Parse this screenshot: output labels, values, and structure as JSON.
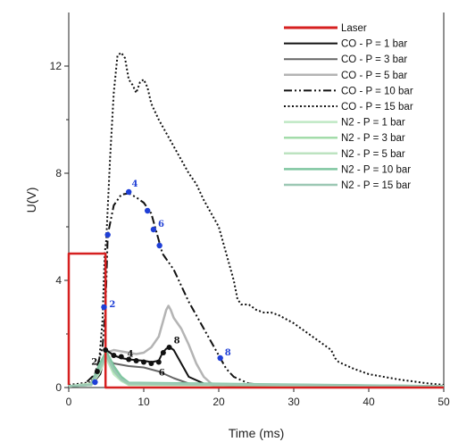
{
  "chart_data": {
    "type": "line",
    "xlabel": "Time (ms)",
    "ylabel": "U(V)",
    "xlim": [
      0,
      50
    ],
    "ylim": [
      0,
      14
    ],
    "x_ticks": [
      0,
      10,
      20,
      30,
      40,
      50
    ],
    "y_ticks": [
      0,
      4,
      8,
      12
    ],
    "grid": false,
    "legend_position": "top-right",
    "series": [
      {
        "name": "Laser",
        "color": "#d62020",
        "style": "solid",
        "width": 2.5,
        "points": [
          [
            0,
            0.1
          ],
          [
            0,
            5
          ],
          [
            4.9,
            5
          ],
          [
            4.9,
            0
          ],
          [
            50,
            0
          ]
        ]
      },
      {
        "name": "CO - P = 1 bar",
        "color": "#111111",
        "style": "solid",
        "width": 2,
        "points": [
          [
            0,
            0.05
          ],
          [
            3,
            0.1
          ],
          [
            4.2,
            0.5
          ],
          [
            5,
            1.4
          ],
          [
            6,
            1.2
          ],
          [
            7,
            1.1
          ],
          [
            8,
            1.05
          ],
          [
            10,
            1.0
          ],
          [
            11,
            0.95
          ],
          [
            12,
            1.0
          ],
          [
            12.5,
            1.3
          ],
          [
            13,
            1.45
          ],
          [
            13.5,
            1.5
          ],
          [
            14,
            1.4
          ],
          [
            15,
            0.9
          ],
          [
            16,
            0.4
          ],
          [
            18,
            0.15
          ],
          [
            22,
            0.05
          ],
          [
            50,
            0.05
          ]
        ]
      },
      {
        "name": "CO - P = 3 bar",
        "color": "#666666",
        "style": "solid",
        "width": 2,
        "points": [
          [
            0,
            0.05
          ],
          [
            3,
            0.1
          ],
          [
            4,
            0.5
          ],
          [
            5,
            1.1
          ],
          [
            6,
            0.9
          ],
          [
            8,
            0.8
          ],
          [
            10,
            0.75
          ],
          [
            12,
            0.6
          ],
          [
            14,
            0.35
          ],
          [
            16,
            0.15
          ],
          [
            20,
            0.05
          ],
          [
            50,
            0.05
          ]
        ]
      },
      {
        "name": "CO - P = 5 bar",
        "color": "#b4b4b4",
        "style": "solid",
        "width": 2.5,
        "points": [
          [
            0,
            0.05
          ],
          [
            3,
            0.1
          ],
          [
            4,
            0.6
          ],
          [
            5,
            1.3
          ],
          [
            6,
            1.4
          ],
          [
            7,
            1.35
          ],
          [
            8,
            1.3
          ],
          [
            9,
            1.25
          ],
          [
            10,
            1.3
          ],
          [
            11,
            1.5
          ],
          [
            12,
            1.9
          ],
          [
            12.5,
            2.4
          ],
          [
            13,
            2.9
          ],
          [
            13.3,
            3.05
          ],
          [
            13.6,
            2.9
          ],
          [
            14,
            2.6
          ],
          [
            15,
            2.2
          ],
          [
            16,
            1.6
          ],
          [
            17,
            0.9
          ],
          [
            18,
            0.4
          ],
          [
            19,
            0.15
          ],
          [
            22,
            0.05
          ],
          [
            50,
            0.05
          ]
        ]
      },
      {
        "name": "CO - P = 10 bar",
        "color": "#111111",
        "style": "dashdotdot",
        "width": 2,
        "points": [
          [
            0,
            0.05
          ],
          [
            2,
            0.1
          ],
          [
            3.5,
            0.5
          ],
          [
            4.5,
            1.5
          ],
          [
            4.9,
            3.0
          ],
          [
            5.2,
            5.7
          ],
          [
            6,
            6.8
          ],
          [
            7,
            7.2
          ],
          [
            8,
            7.25
          ],
          [
            9,
            7.1
          ],
          [
            10,
            6.9
          ],
          [
            11,
            6.5
          ],
          [
            12,
            5.5
          ],
          [
            12.5,
            5.0
          ],
          [
            13,
            4.8
          ],
          [
            14,
            4.4
          ],
          [
            16,
            3.2
          ],
          [
            18,
            2.2
          ],
          [
            20,
            1.2
          ],
          [
            21,
            0.7
          ],
          [
            22,
            0.4
          ],
          [
            24,
            0.15
          ],
          [
            28,
            0.05
          ],
          [
            50,
            0.05
          ]
        ]
      },
      {
        "name": "CO - P = 15 bar",
        "color": "#111111",
        "style": "dotted",
        "width": 2,
        "points": [
          [
            0,
            0.1
          ],
          [
            3,
            0.2
          ],
          [
            4,
            0.8
          ],
          [
            4.5,
            2.5
          ],
          [
            4.8,
            5.0
          ],
          [
            5,
            5.5
          ],
          [
            5.5,
            8.5
          ],
          [
            6,
            11.0
          ],
          [
            6.5,
            12.4
          ],
          [
            7,
            12.5
          ],
          [
            7.5,
            12.3
          ],
          [
            8,
            11.5
          ],
          [
            8.5,
            11.3
          ],
          [
            9,
            11.0
          ],
          [
            9.5,
            11.4
          ],
          [
            10,
            11.5
          ],
          [
            10.5,
            11.2
          ],
          [
            11,
            10.6
          ],
          [
            12,
            10.0
          ],
          [
            13,
            9.5
          ],
          [
            14,
            9.0
          ],
          [
            15,
            8.5
          ],
          [
            16,
            8.0
          ],
          [
            17,
            7.6
          ],
          [
            18,
            7.0
          ],
          [
            19,
            6.5
          ],
          [
            20,
            6.0
          ],
          [
            21,
            5.0
          ],
          [
            22,
            4.0
          ],
          [
            22.5,
            3.3
          ],
          [
            23,
            3.1
          ],
          [
            24,
            3.1
          ],
          [
            25,
            2.9
          ],
          [
            26,
            2.8
          ],
          [
            27,
            2.8
          ],
          [
            28,
            2.7
          ],
          [
            30,
            2.4
          ],
          [
            32,
            2.0
          ],
          [
            34,
            1.6
          ],
          [
            35,
            1.4
          ],
          [
            35.5,
            1.1
          ],
          [
            36,
            0.95
          ],
          [
            38,
            0.7
          ],
          [
            40,
            0.5
          ],
          [
            44,
            0.3
          ],
          [
            48,
            0.15
          ],
          [
            50,
            0.1
          ]
        ]
      },
      {
        "name": "N2 - P = 1 bar",
        "color": "#bfe8c4",
        "style": "solid",
        "width": 2.5,
        "points": [
          [
            0,
            0.05
          ],
          [
            3,
            0.1
          ],
          [
            4,
            0.5
          ],
          [
            5,
            1.1
          ],
          [
            6,
            0.5
          ],
          [
            7,
            0.25
          ],
          [
            8,
            0.1
          ],
          [
            50,
            0.05
          ]
        ]
      },
      {
        "name": "N2 - P = 3 bar",
        "color": "#a3dcaa",
        "style": "solid",
        "width": 2.5,
        "points": [
          [
            0,
            0.05
          ],
          [
            3,
            0.1
          ],
          [
            4,
            0.6
          ],
          [
            5,
            1.25
          ],
          [
            6,
            0.6
          ],
          [
            7,
            0.3
          ],
          [
            8,
            0.12
          ],
          [
            50,
            0.05
          ]
        ]
      },
      {
        "name": "N2 - P = 5 bar",
        "color": "#bde3c0",
        "style": "solid",
        "width": 2.5,
        "points": [
          [
            0,
            0.05
          ],
          [
            3,
            0.15
          ],
          [
            4,
            0.7
          ],
          [
            5,
            1.2
          ],
          [
            6,
            0.7
          ],
          [
            7,
            0.35
          ],
          [
            8,
            0.15
          ],
          [
            50,
            0.05
          ]
        ]
      },
      {
        "name": "N2 - P = 10 bar",
        "color": "#7fc6a0",
        "style": "solid",
        "width": 2.5,
        "points": [
          [
            0,
            0.05
          ],
          [
            3,
            0.1
          ],
          [
            4,
            0.8
          ],
          [
            5,
            1.35
          ],
          [
            6,
            0.8
          ],
          [
            7,
            0.4
          ],
          [
            8,
            0.18
          ],
          [
            50,
            0.05
          ]
        ]
      },
      {
        "name": "N2 - P = 15 bar",
        "color": "#9cc8b4",
        "style": "solid",
        "width": 2.5,
        "points": [
          [
            0,
            0.05
          ],
          [
            3,
            0.1
          ],
          [
            4,
            0.6
          ],
          [
            5,
            1.2
          ],
          [
            6,
            0.65
          ],
          [
            7,
            0.3
          ],
          [
            8,
            0.15
          ],
          [
            50,
            0.05
          ]
        ]
      }
    ],
    "markers_blue": [
      [
        3.5,
        0.2
      ],
      [
        4.7,
        3.0
      ],
      [
        5.2,
        5.7
      ],
      [
        8,
        7.3
      ],
      [
        10.5,
        6.6
      ],
      [
        11.3,
        5.9
      ],
      [
        12.1,
        5.3
      ],
      [
        20.2,
        1.1
      ]
    ],
    "markers_black": [
      [
        3.8,
        0.6
      ],
      [
        4.9,
        1.4
      ],
      [
        6,
        1.2
      ],
      [
        7,
        1.15
      ],
      [
        8,
        1.05
      ],
      [
        9,
        1.0
      ],
      [
        10,
        0.95
      ],
      [
        11,
        0.9
      ],
      [
        12,
        0.95
      ],
      [
        12.6,
        1.3
      ],
      [
        13.4,
        1.5
      ]
    ],
    "annotations_blue": [
      {
        "text": "2",
        "x": 5.4,
        "y": 3.0
      },
      {
        "text": "4",
        "x": 8.4,
        "y": 7.5
      },
      {
        "text": "6",
        "x": 11.9,
        "y": 6.0
      },
      {
        "text": "8",
        "x": 20.8,
        "y": 1.2
      }
    ],
    "annotations_black": [
      {
        "text": "2",
        "x": 3.0,
        "y": 0.85
      },
      {
        "text": "4",
        "x": 7.8,
        "y": 1.15
      },
      {
        "text": "6",
        "x": 12.0,
        "y": 0.45
      },
      {
        "text": "8",
        "x": 14.0,
        "y": 1.65
      }
    ]
  }
}
